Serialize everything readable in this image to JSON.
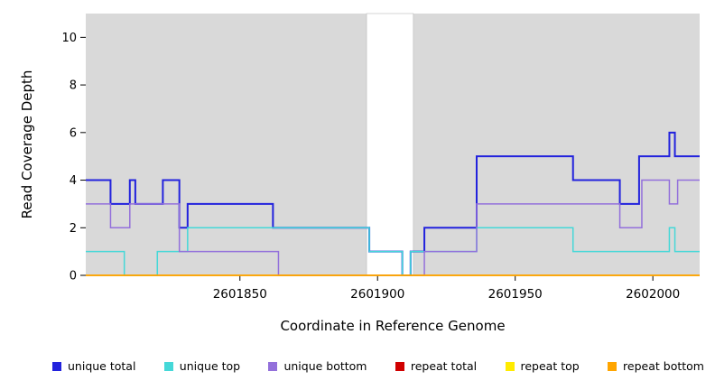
{
  "chart_data": {
    "type": "line",
    "subtype": "step",
    "title": "",
    "xlabel": "Coordinate in Reference Genome",
    "ylabel": "Read Coverage Depth",
    "xlim": [
      2601794,
      2602017
    ],
    "ylim": [
      0,
      11
    ],
    "x_ticks": [
      2601850,
      2601900,
      2601950,
      2602000
    ],
    "y_ticks": [
      0,
      2,
      4,
      6,
      8,
      10
    ],
    "grid": false,
    "legend_position": "bottom",
    "plot_bg": "#d9d9d9",
    "gap_region": {
      "x0": 2601896,
      "x1": 2601913,
      "color": "#ffffff"
    },
    "series": [
      {
        "name": "unique total",
        "color": "#2222DD",
        "width": 2,
        "steps": [
          [
            2601794,
            4
          ],
          [
            2601803,
            3
          ],
          [
            2601810,
            4
          ],
          [
            2601812,
            3
          ],
          [
            2601822,
            4
          ],
          [
            2601828,
            2
          ],
          [
            2601831,
            3
          ],
          [
            2601862,
            2
          ],
          [
            2601897,
            1
          ],
          [
            2601909,
            0
          ],
          [
            2601912,
            1
          ],
          [
            2601917,
            2
          ],
          [
            2601936,
            5
          ],
          [
            2601971,
            4
          ],
          [
            2601988,
            3
          ],
          [
            2601995,
            5
          ],
          [
            2602006,
            6
          ],
          [
            2602008,
            5
          ],
          [
            2602017,
            5
          ]
        ]
      },
      {
        "name": "unique top",
        "color": "#45D8D8",
        "width": 1.5,
        "steps": [
          [
            2601794,
            1
          ],
          [
            2601808,
            0
          ],
          [
            2601820,
            1
          ],
          [
            2601831,
            2
          ],
          [
            2601897,
            1
          ],
          [
            2601909,
            0
          ],
          [
            2601912,
            1
          ],
          [
            2601936,
            2
          ],
          [
            2601971,
            1
          ],
          [
            2602006,
            2
          ],
          [
            2602008,
            1
          ],
          [
            2602017,
            1
          ]
        ]
      },
      {
        "name": "unique bottom",
        "color": "#9370DB",
        "width": 1.5,
        "steps": [
          [
            2601794,
            3
          ],
          [
            2601803,
            2
          ],
          [
            2601810,
            3
          ],
          [
            2601828,
            1
          ],
          [
            2601864,
            0
          ],
          [
            2601917,
            1
          ],
          [
            2601936,
            3
          ],
          [
            2601988,
            2
          ],
          [
            2601996,
            4
          ],
          [
            2602006,
            3
          ],
          [
            2602009,
            4
          ],
          [
            2602017,
            4
          ]
        ]
      },
      {
        "name": "repeat total",
        "color": "#D00000",
        "width": 1.5,
        "steps": [
          [
            2601794,
            0
          ],
          [
            2602017,
            0
          ]
        ]
      },
      {
        "name": "repeat top",
        "color": "#FFEB00",
        "width": 1.5,
        "steps": [
          [
            2601794,
            0
          ],
          [
            2602017,
            0
          ]
        ]
      },
      {
        "name": "repeat bottom",
        "color": "#FFA500",
        "width": 1.5,
        "steps": [
          [
            2601794,
            0
          ],
          [
            2602017,
            0
          ]
        ]
      }
    ]
  }
}
